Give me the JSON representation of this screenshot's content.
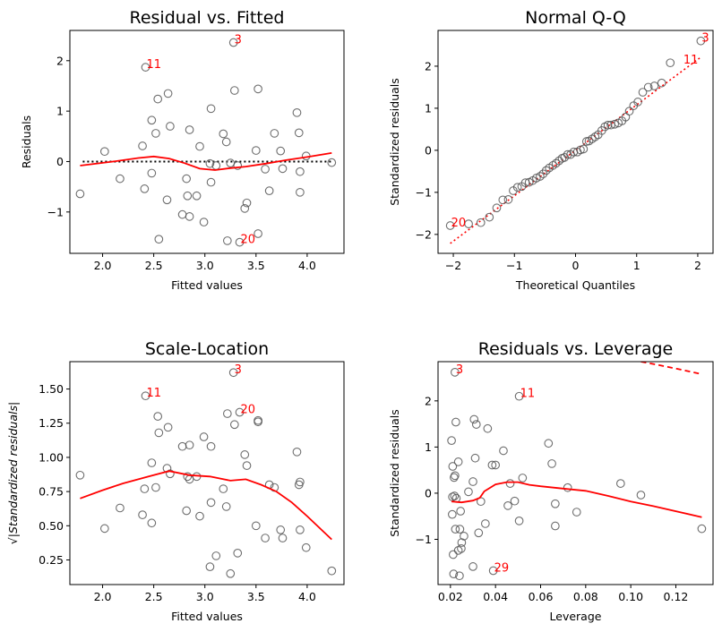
{
  "chart_data": [
    {
      "type": "scatter",
      "title": "Residual vs. Fitted",
      "xlabel": "Fitted values",
      "ylabel": "Residuals",
      "xlim": [
        1.68,
        4.36
      ],
      "ylim": [
        -1.82,
        2.6
      ],
      "xticks": [
        2.0,
        2.5,
        3.0,
        3.5,
        4.0
      ],
      "xtick_labels": [
        "2.0",
        "2.5",
        "3.0",
        "3.5",
        "4.0"
      ],
      "yticks": [
        -1,
        0,
        1,
        2
      ],
      "ytick_labels": [
        "−1",
        "0",
        "1",
        "2"
      ],
      "points": [
        [
          1.78,
          -0.64
        ],
        [
          2.02,
          0.2
        ],
        [
          2.17,
          -0.34
        ],
        [
          2.39,
          0.31
        ],
        [
          2.41,
          -0.54
        ],
        [
          2.42,
          1.87
        ],
        [
          2.48,
          0.82
        ],
        [
          2.48,
          -0.23
        ],
        [
          2.52,
          0.56
        ],
        [
          2.54,
          1.24
        ],
        [
          2.55,
          -1.54
        ],
        [
          2.63,
          -0.76
        ],
        [
          2.64,
          1.35
        ],
        [
          2.66,
          0.7
        ],
        [
          2.78,
          -1.05
        ],
        [
          2.82,
          -0.34
        ],
        [
          2.83,
          -0.68
        ],
        [
          2.85,
          0.63
        ],
        [
          2.85,
          -1.09
        ],
        [
          2.92,
          -0.68
        ],
        [
          2.95,
          0.3
        ],
        [
          2.99,
          -1.2
        ],
        [
          3.05,
          -0.04
        ],
        [
          3.06,
          1.05
        ],
        [
          3.06,
          -0.41
        ],
        [
          3.11,
          -0.08
        ],
        [
          3.18,
          0.55
        ],
        [
          3.21,
          0.39
        ],
        [
          3.22,
          -1.57
        ],
        [
          3.25,
          -0.03
        ],
        [
          3.28,
          2.36
        ],
        [
          3.29,
          1.41
        ],
        [
          3.32,
          -0.08
        ],
        [
          3.34,
          -1.6
        ],
        [
          3.39,
          -0.93
        ],
        [
          3.41,
          -0.82
        ],
        [
          3.5,
          0.22
        ],
        [
          3.52,
          1.44
        ],
        [
          3.52,
          -1.43
        ],
        [
          3.59,
          -0.15
        ],
        [
          3.63,
          -0.58
        ],
        [
          3.68,
          0.56
        ],
        [
          3.74,
          0.21
        ],
        [
          3.76,
          -0.14
        ],
        [
          3.9,
          0.97
        ],
        [
          3.92,
          0.57
        ],
        [
          3.93,
          -0.2
        ],
        [
          3.93,
          -0.61
        ],
        [
          3.99,
          0.11
        ],
        [
          4.24,
          -0.02
        ]
      ],
      "refline": {
        "y": 0,
        "style": "dotted"
      },
      "smooth": [
        [
          1.78,
          -0.08
        ],
        [
          2.1,
          0.0
        ],
        [
          2.35,
          0.07
        ],
        [
          2.5,
          0.1
        ],
        [
          2.65,
          0.06
        ],
        [
          2.8,
          -0.03
        ],
        [
          2.95,
          -0.14
        ],
        [
          3.1,
          -0.17
        ],
        [
          3.25,
          -0.13
        ],
        [
          3.4,
          -0.1
        ],
        [
          3.6,
          -0.04
        ],
        [
          3.8,
          0.03
        ],
        [
          4.0,
          0.09
        ],
        [
          4.24,
          0.17
        ]
      ],
      "annotations": [
        {
          "text": "3",
          "x": 3.28,
          "y": 2.36
        },
        {
          "text": "11",
          "x": 2.42,
          "y": 1.87
        },
        {
          "text": "20",
          "x": 3.34,
          "y": -1.6
        }
      ]
    },
    {
      "type": "scatter",
      "title": "Normal Q-Q",
      "xlabel": "Theoretical Quantiles",
      "ylabel": "Standardized residuals",
      "xlim": [
        -2.25,
        2.25
      ],
      "ylim": [
        -2.45,
        2.85
      ],
      "xticks": [
        -2,
        -1,
        0,
        1,
        2
      ],
      "xtick_labels": [
        "−2",
        "−1",
        "0",
        "1",
        "2"
      ],
      "yticks": [
        -2,
        -1,
        0,
        1,
        2
      ],
      "ytick_labels": [
        "−2",
        "−1",
        "0",
        "1",
        "2"
      ],
      "points": [
        [
          -2.05,
          -1.79
        ],
        [
          -1.75,
          -1.75
        ],
        [
          -1.55,
          -1.72
        ],
        [
          -1.41,
          -1.59
        ],
        [
          -1.29,
          -1.37
        ],
        [
          -1.19,
          -1.18
        ],
        [
          -1.1,
          -1.17
        ],
        [
          -1.02,
          -0.96
        ],
        [
          -0.95,
          -0.88
        ],
        [
          -0.88,
          -0.86
        ],
        [
          -0.82,
          -0.77
        ],
        [
          -0.76,
          -0.76
        ],
        [
          -0.7,
          -0.72
        ],
        [
          -0.64,
          -0.66
        ],
        [
          -0.58,
          -0.62
        ],
        [
          -0.53,
          -0.56
        ],
        [
          -0.48,
          -0.48
        ],
        [
          -0.43,
          -0.42
        ],
        [
          -0.37,
          -0.36
        ],
        [
          -0.32,
          -0.31
        ],
        [
          -0.27,
          -0.25
        ],
        [
          -0.22,
          -0.19
        ],
        [
          -0.18,
          -0.17
        ],
        [
          -0.13,
          -0.1
        ],
        [
          -0.08,
          -0.1
        ],
        [
          -0.03,
          -0.04
        ],
        [
          0.03,
          -0.04
        ],
        [
          0.08,
          0.01
        ],
        [
          0.13,
          0.03
        ],
        [
          0.18,
          0.21
        ],
        [
          0.22,
          0.22
        ],
        [
          0.27,
          0.27
        ],
        [
          0.32,
          0.32
        ],
        [
          0.37,
          0.37
        ],
        [
          0.43,
          0.47
        ],
        [
          0.48,
          0.56
        ],
        [
          0.53,
          0.6
        ],
        [
          0.58,
          0.6
        ],
        [
          0.64,
          0.62
        ],
        [
          0.7,
          0.65
        ],
        [
          0.76,
          0.7
        ],
        [
          0.82,
          0.79
        ],
        [
          0.88,
          0.93
        ],
        [
          0.95,
          1.06
        ],
        [
          1.02,
          1.15
        ],
        [
          1.1,
          1.38
        ],
        [
          1.19,
          1.5
        ],
        [
          1.29,
          1.53
        ],
        [
          1.41,
          1.6
        ],
        [
          1.55,
          2.08
        ],
        [
          2.05,
          2.6
        ]
      ],
      "refline": {
        "slope": 1.08,
        "intercept": 0.0,
        "style": "dotted"
      },
      "annotations": [
        {
          "text": "3",
          "x": 2.05,
          "y": 2.6
        },
        {
          "text": "11",
          "x": 1.75,
          "y": 2.08
        },
        {
          "text": "20",
          "x": -2.05,
          "y": -1.79
        }
      ]
    },
    {
      "type": "scatter",
      "title": "Scale-Location",
      "xlabel": "Fitted values",
      "ylabel": "√|Standardized residuals|",
      "xlim": [
        1.68,
        4.36
      ],
      "ylim": [
        0.07,
        1.7
      ],
      "xticks": [
        2.0,
        2.5,
        3.0,
        3.5,
        4.0
      ],
      "xtick_labels": [
        "2.0",
        "2.5",
        "3.0",
        "3.5",
        "4.0"
      ],
      "yticks": [
        0.25,
        0.5,
        0.75,
        1.0,
        1.25,
        1.5
      ],
      "ytick_labels": [
        "0.25",
        "0.50",
        "0.75",
        "1.00",
        "1.25",
        "1.50"
      ],
      "points": [
        [
          1.78,
          0.87
        ],
        [
          2.02,
          0.48
        ],
        [
          2.17,
          0.63
        ],
        [
          2.39,
          0.58
        ],
        [
          2.41,
          0.77
        ],
        [
          2.42,
          1.45
        ],
        [
          2.48,
          0.96
        ],
        [
          2.48,
          0.52
        ],
        [
          2.52,
          0.78
        ],
        [
          2.54,
          1.3
        ],
        [
          2.55,
          1.18
        ],
        [
          2.63,
          0.92
        ],
        [
          2.64,
          1.22
        ],
        [
          2.66,
          0.88
        ],
        [
          2.78,
          1.08
        ],
        [
          2.82,
          0.61
        ],
        [
          2.83,
          0.86
        ],
        [
          2.85,
          1.09
        ],
        [
          2.85,
          0.84
        ],
        [
          2.92,
          0.86
        ],
        [
          2.95,
          0.57
        ],
        [
          2.99,
          1.15
        ],
        [
          3.05,
          0.2
        ],
        [
          3.06,
          1.08
        ],
        [
          3.06,
          0.67
        ],
        [
          3.11,
          0.28
        ],
        [
          3.18,
          0.77
        ],
        [
          3.21,
          0.64
        ],
        [
          3.22,
          1.32
        ],
        [
          3.25,
          0.15
        ],
        [
          3.28,
          1.62
        ],
        [
          3.29,
          1.24
        ],
        [
          3.32,
          0.3
        ],
        [
          3.34,
          1.33
        ],
        [
          3.39,
          1.02
        ],
        [
          3.41,
          0.94
        ],
        [
          3.5,
          0.5
        ],
        [
          3.52,
          1.27
        ],
        [
          3.52,
          1.26
        ],
        [
          3.59,
          0.41
        ],
        [
          3.63,
          0.8
        ],
        [
          3.68,
          0.78
        ],
        [
          3.74,
          0.47
        ],
        [
          3.76,
          0.41
        ],
        [
          3.9,
          1.04
        ],
        [
          3.92,
          0.8
        ],
        [
          3.93,
          0.47
        ],
        [
          3.93,
          0.82
        ],
        [
          3.99,
          0.34
        ],
        [
          4.24,
          0.17
        ]
      ],
      "smooth": [
        [
          1.78,
          0.7
        ],
        [
          2.0,
          0.76
        ],
        [
          2.2,
          0.81
        ],
        [
          2.45,
          0.86
        ],
        [
          2.65,
          0.9
        ],
        [
          2.85,
          0.87
        ],
        [
          3.05,
          0.86
        ],
        [
          3.25,
          0.83
        ],
        [
          3.4,
          0.84
        ],
        [
          3.55,
          0.8
        ],
        [
          3.7,
          0.75
        ],
        [
          3.85,
          0.67
        ],
        [
          4.0,
          0.57
        ],
        [
          4.24,
          0.4
        ]
      ],
      "annotations": [
        {
          "text": "3",
          "x": 3.28,
          "y": 1.62
        },
        {
          "text": "11",
          "x": 2.42,
          "y": 1.45
        },
        {
          "text": "20",
          "x": 3.34,
          "y": 1.33
        }
      ]
    },
    {
      "type": "scatter",
      "title": "Residuals vs. Leverage",
      "xlabel": "Leverage",
      "ylabel": "Standardized residuals",
      "xlim": [
        0.0145,
        0.1365
      ],
      "ylim": [
        -1.98,
        2.85
      ],
      "xticks": [
        0.02,
        0.04,
        0.06,
        0.08,
        0.1,
        0.12
      ],
      "xtick_labels": [
        "0.02",
        "0.04",
        "0.06",
        "0.08",
        "0.10",
        "0.12"
      ],
      "yticks": [
        -1,
        0,
        1,
        2
      ],
      "ytick_labels": [
        "−1",
        "0",
        "1",
        "2"
      ],
      "points": [
        [
          0.0205,
          1.14
        ],
        [
          0.0208,
          -0.46
        ],
        [
          0.0209,
          -0.08
        ],
        [
          0.021,
          0.58
        ],
        [
          0.0212,
          -1.33
        ],
        [
          0.0214,
          -1.75
        ],
        [
          0.0216,
          0.34
        ],
        [
          0.0218,
          -0.06
        ],
        [
          0.022,
          0.38
        ],
        [
          0.022,
          2.62
        ],
        [
          0.0222,
          -0.78
        ],
        [
          0.0224,
          1.54
        ],
        [
          0.0226,
          -0.11
        ],
        [
          0.0235,
          -1.24
        ],
        [
          0.0235,
          0.68
        ],
        [
          0.024,
          -1.79
        ],
        [
          0.0242,
          -0.78
        ],
        [
          0.0245,
          -0.39
        ],
        [
          0.0248,
          -1.2
        ],
        [
          0.025,
          -1.07
        ],
        [
          0.026,
          -0.93
        ],
        [
          0.028,
          0.03
        ],
        [
          0.03,
          0.25
        ],
        [
          0.03,
          -1.59
        ],
        [
          0.0305,
          1.6
        ],
        [
          0.031,
          0.76
        ],
        [
          0.0315,
          1.49
        ],
        [
          0.0325,
          -0.86
        ],
        [
          0.0335,
          -0.18
        ],
        [
          0.0355,
          -0.66
        ],
        [
          0.0365,
          1.4
        ],
        [
          0.0385,
          0.61
        ],
        [
          0.039,
          -1.68
        ],
        [
          0.04,
          0.61
        ],
        [
          0.0435,
          0.92
        ],
        [
          0.0455,
          -0.27
        ],
        [
          0.0465,
          0.21
        ],
        [
          0.0485,
          -0.17
        ],
        [
          0.0505,
          -0.6
        ],
        [
          0.0505,
          2.1
        ],
        [
          0.052,
          0.33
        ],
        [
          0.0635,
          1.08
        ],
        [
          0.065,
          0.64
        ],
        [
          0.0665,
          -0.23
        ],
        [
          0.0665,
          -0.71
        ],
        [
          0.072,
          0.12
        ],
        [
          0.076,
          -0.41
        ],
        [
          0.0955,
          0.21
        ],
        [
          0.1045,
          -0.04
        ],
        [
          0.1315,
          -0.77
        ]
      ],
      "smooth": [
        [
          0.0205,
          -0.18
        ],
        [
          0.025,
          -0.2
        ],
        [
          0.03,
          -0.16
        ],
        [
          0.033,
          -0.1
        ],
        [
          0.035,
          0.04
        ],
        [
          0.04,
          0.19
        ],
        [
          0.045,
          0.24
        ],
        [
          0.05,
          0.24
        ],
        [
          0.055,
          0.18
        ],
        [
          0.06,
          0.15
        ],
        [
          0.07,
          0.1
        ],
        [
          0.08,
          0.05
        ],
        [
          0.09,
          -0.06
        ],
        [
          0.1,
          -0.18
        ],
        [
          0.11,
          -0.28
        ],
        [
          0.1315,
          -0.52
        ]
      ],
      "cooks": [
        [
          0.1045,
          2.85
        ],
        [
          0.11,
          2.8
        ],
        [
          0.12,
          2.7
        ],
        [
          0.1315,
          2.58
        ]
      ],
      "annotations": [
        {
          "text": "3",
          "x": 0.022,
          "y": 2.62
        },
        {
          "text": "11",
          "x": 0.0505,
          "y": 2.1
        },
        {
          "text": "29",
          "x": 0.039,
          "y": -1.68
        }
      ]
    }
  ]
}
